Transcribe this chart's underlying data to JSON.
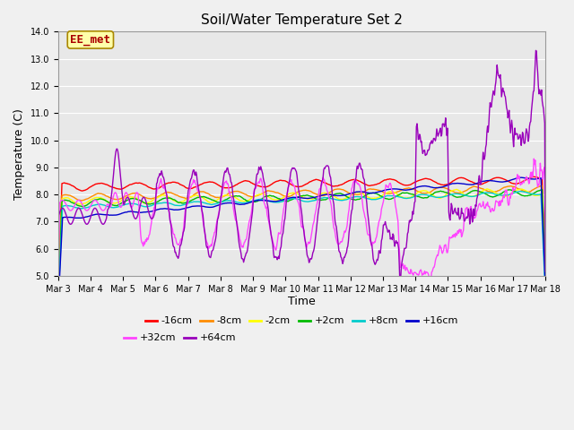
{
  "title": "Soil/Water Temperature Set 2",
  "xlabel": "Time",
  "ylabel": "Temperature (C)",
  "ylim": [
    5.0,
    14.0
  ],
  "yticks": [
    5.0,
    6.0,
    7.0,
    8.0,
    9.0,
    10.0,
    11.0,
    12.0,
    13.0,
    14.0
  ],
  "x_labels": [
    "Mar 3",
    "Mar 4",
    "Mar 5",
    "Mar 6",
    "Mar 7",
    "Mar 8",
    "Mar 9",
    "Mar 10",
    "Mar 11",
    "Mar 12",
    "Mar 13",
    "Mar 14",
    "Mar 15",
    "Mar 16",
    "Mar 17",
    "Mar 18"
  ],
  "series_order": [
    "-16cm",
    "-8cm",
    "-2cm",
    "+2cm",
    "+8cm",
    "+16cm",
    "+32cm",
    "+64cm"
  ],
  "colors": {
    "-16cm": "#ff0000",
    "-8cm": "#ff8c00",
    "-2cm": "#ffff00",
    "+2cm": "#00bb00",
    "+8cm": "#00cccc",
    "+16cm": "#0000cc",
    "+32cm": "#ff44ff",
    "+64cm": "#9900bb"
  },
  "lw": 1.0,
  "annotation_text": "EE_met",
  "annotation_color": "#aa0000",
  "annotation_bg": "#ffffaa",
  "annotation_border": "#aa8800",
  "plot_bg": "#e8e8e8",
  "fig_bg": "#f0f0f0",
  "grid_color": "#ffffff",
  "title_fontsize": 11,
  "tick_fontsize": 7,
  "label_fontsize": 9,
  "legend_fontsize": 8
}
